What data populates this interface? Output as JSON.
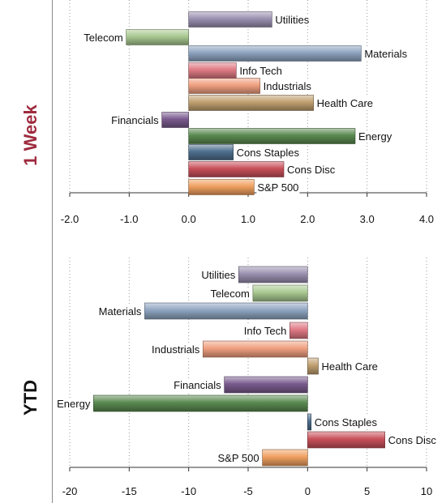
{
  "colors": {
    "week_label": "#9e2b3e",
    "ytd_label": "#111111",
    "gridline": "#9a9a9a",
    "axis": "#333333"
  },
  "panel_labels": {
    "week": "1 Week",
    "ytd": "YTD"
  },
  "chart_data": [
    {
      "type": "bar",
      "orientation": "horizontal",
      "panel": "1 Week",
      "categories": [
        "S&P 500",
        "Cons Disc",
        "Cons Staples",
        "Energy",
        "Financials",
        "Health Care",
        "Industrials",
        "Info Tech",
        "Materials",
        "Telecom",
        "Utilities"
      ],
      "values": [
        1.1,
        1.6,
        0.75,
        2.8,
        -0.45,
        2.1,
        1.2,
        0.8,
        2.9,
        -1.05,
        1.4
      ],
      "colors": [
        "#f0a060",
        "#c8505a",
        "#4e6f8e",
        "#5a8a50",
        "#7a5a8e",
        "#c0a070",
        "#f0a080",
        "#e07a85",
        "#8ea4c0",
        "#a8c890",
        "#9a90b0"
      ],
      "xlim": [
        -2.0,
        4.0
      ],
      "ticks": [
        "-2.0",
        "-1.0",
        "0.0",
        "1.0",
        "2.0",
        "3.0",
        "4.0"
      ],
      "grid": true
    },
    {
      "type": "bar",
      "orientation": "horizontal",
      "panel": "YTD",
      "categories": [
        "S&P 500",
        "Cons Disc",
        "Cons Staples",
        "Energy",
        "Financials",
        "Health Care",
        "Industrials",
        "Info Tech",
        "Materials",
        "Telecom",
        "Utilities"
      ],
      "values": [
        -3.8,
        6.5,
        0.3,
        -18.0,
        -7.0,
        0.9,
        -8.8,
        -1.5,
        -13.7,
        -4.6,
        -5.8
      ],
      "colors": [
        "#f0a060",
        "#c8505a",
        "#4e6f8e",
        "#5a8a50",
        "#7a5a8e",
        "#c0a070",
        "#f0a080",
        "#e07a85",
        "#8ea4c0",
        "#a8c890",
        "#9a90b0"
      ],
      "xlim": [
        -20,
        10
      ],
      "ticks": [
        "-20",
        "-15",
        "-10",
        "-5",
        "0",
        "5",
        "10"
      ],
      "grid": true
    }
  ]
}
